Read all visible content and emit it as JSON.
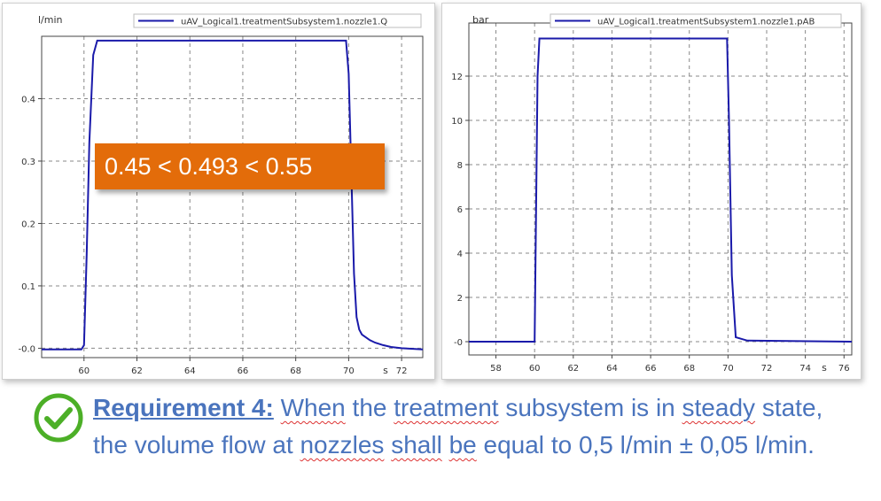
{
  "chart_data": [
    {
      "type": "line",
      "ylabel": "l/min",
      "xlabel": "s",
      "legend": "top-right",
      "grid": true,
      "xlim": [
        58.4,
        72.8
      ],
      "ylim": [
        -0.015,
        0.5
      ],
      "xticks": [
        "60",
        "62",
        "64",
        "66",
        "68",
        "70",
        "72"
      ],
      "yticks": [
        "-0.0",
        "0.1",
        "0.2",
        "0.3",
        "0.4"
      ],
      "series": [
        {
          "name": "uAV_Logical1.treatmentSubsystem1.nozzle1.Q",
          "color": "#1a1aaa",
          "x": [
            58.4,
            59.9,
            60.0,
            60.1,
            60.2,
            60.35,
            60.5,
            62,
            64,
            66,
            68,
            69.9,
            70.0,
            70.1,
            70.2,
            70.3,
            70.4,
            70.5,
            70.8,
            71.0,
            71.3,
            71.6,
            72.0,
            72.8
          ],
          "y": [
            -0.002,
            -0.002,
            0.005,
            0.15,
            0.33,
            0.47,
            0.493,
            0.493,
            0.493,
            0.493,
            0.493,
            0.493,
            0.44,
            0.28,
            0.12,
            0.05,
            0.03,
            0.022,
            0.013,
            0.009,
            0.005,
            0.002,
            0.0,
            -0.002
          ]
        }
      ],
      "annotation": "0.45 < 0.493 < 0.55"
    },
    {
      "type": "line",
      "ylabel": "bar",
      "xlabel": "s",
      "legend": "top-right",
      "grid": true,
      "xlim": [
        56.6,
        76.4
      ],
      "ylim": [
        -0.6,
        14.4
      ],
      "xticks": [
        "58",
        "60",
        "62",
        "64",
        "66",
        "68",
        "70",
        "72",
        "74",
        "76"
      ],
      "yticks": [
        "-0",
        "2",
        "4",
        "6",
        "8",
        "10",
        "12"
      ],
      "series": [
        {
          "name": "uAV_Logical1.treatmentSubsystem1.nozzle1.pAB",
          "color": "#1a1aaa",
          "x": [
            56.6,
            60.0,
            60.05,
            60.15,
            60.25,
            69.95,
            70.05,
            70.2,
            70.4,
            71.0,
            76.4
          ],
          "y": [
            0.0,
            0.0,
            4.0,
            12.0,
            13.7,
            13.7,
            10.0,
            3.0,
            0.2,
            0.05,
            0.0
          ]
        }
      ]
    }
  ],
  "requirement": {
    "label": "Requirement 4:",
    "text": " When the treatment subsystem is in steady state, the volume flow at nozzles shall be equal to 0,5 l/min ± 0,05 l/min."
  },
  "colors": {
    "check": "#4caf27",
    "callout": "#e36c0a",
    "text": "#4a74bd",
    "series": "#1a1aaa"
  }
}
